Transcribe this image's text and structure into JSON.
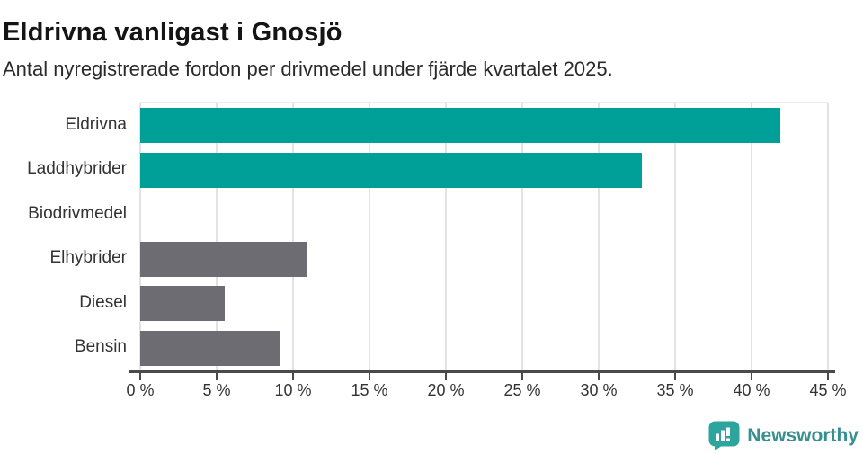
{
  "title": "Eldrivna vanligast i Gnosjö",
  "subtitle": "Antal nyregistrerade fordon per drivmedel under fjärde kvartalet 2025.",
  "chart_data": {
    "type": "bar",
    "orientation": "horizontal",
    "title": "Eldrivna vanligast i Gnosjö",
    "subtitle": "Antal nyregistrerade fordon per drivmedel under fjärde kvartalet 2025.",
    "categories": [
      "Eldrivna",
      "Laddhybrider",
      "Biodrivmedel",
      "Elhybrider",
      "Diesel",
      "Bensin"
    ],
    "values": [
      41.9,
      32.8,
      0,
      10.9,
      5.5,
      9.1
    ],
    "unit": "%",
    "xlabel": "",
    "ylabel": "",
    "xlim": [
      0,
      45
    ],
    "x_tick_values": [
      0,
      5,
      10,
      15,
      20,
      25,
      30,
      35,
      40,
      45
    ],
    "x_tick_labels": [
      "0 %",
      "5 %",
      "10 %",
      "15 %",
      "20 %",
      "25 %",
      "30 %",
      "35 %",
      "40 %",
      "45 %"
    ],
    "grid": true,
    "legend": false,
    "bar_colors": [
      "#00a099",
      "#00a099",
      "#6d6c72",
      "#6d6c72",
      "#6d6c72",
      "#6d6c72"
    ],
    "highlight_color": "#00a099",
    "default_color": "#6d6c72"
  },
  "footer": {
    "brand": "Newsworthy",
    "logo_icon": "newsworthy-speech-bubble-bar-chart-icon",
    "brand_text_color": "#37908f",
    "icon_color": "#2da49e"
  }
}
